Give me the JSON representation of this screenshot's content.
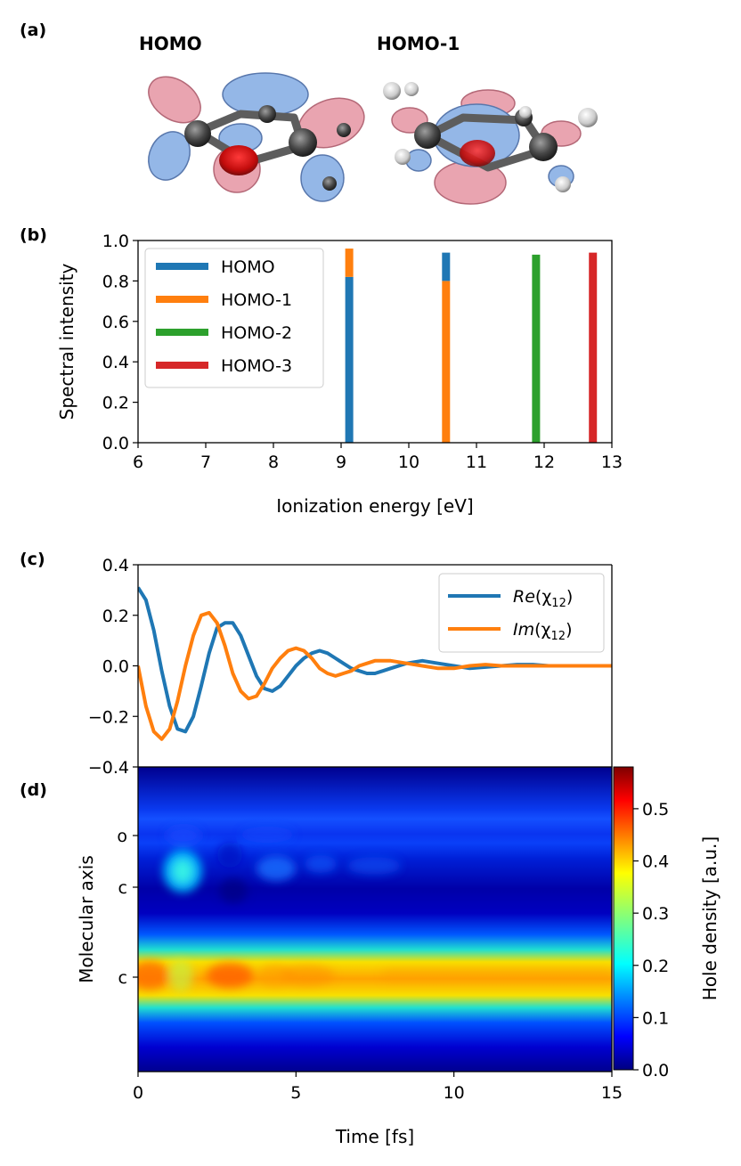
{
  "panel_labels": {
    "a": "(a)",
    "b": "(b)",
    "c": "(c)",
    "d": "(d)"
  },
  "orbitals": {
    "left_title": "HOMO",
    "right_title": "HOMO-1"
  },
  "colors": {
    "tab_blue": "#1f77b4",
    "tab_orange": "#ff7f0e",
    "tab_green": "#2ca02c",
    "tab_red": "#d62728",
    "lobe_red": "#e8a0ac",
    "lobe_blue": "#8fb4e6"
  },
  "chart_data": [
    {
      "id": "b",
      "type": "bar",
      "title": "",
      "xlabel": "Ionization energy [eV]",
      "ylabel": "Spectral intensity",
      "xlim": [
        6,
        13
      ],
      "ylim": [
        0.0,
        1.0
      ],
      "xticks": [
        "6",
        "7",
        "8",
        "9",
        "10",
        "11",
        "12",
        "13"
      ],
      "yticks": [
        "0.0",
        "0.2",
        "0.4",
        "0.6",
        "0.8",
        "1.0"
      ],
      "legend_position": "top-left",
      "legend": [
        "HOMO",
        "HOMO-1",
        "HOMO-2",
        "HOMO-3"
      ],
      "bars": [
        {
          "energy": 9.12,
          "segments": [
            {
              "series": "HOMO",
              "value": 0.82
            },
            {
              "series": "HOMO-1",
              "value": 0.14
            }
          ]
        },
        {
          "energy": 10.55,
          "segments": [
            {
              "series": "HOMO-1",
              "value": 0.8
            },
            {
              "series": "HOMO",
              "value": 0.14
            }
          ]
        },
        {
          "energy": 11.88,
          "segments": [
            {
              "series": "HOMO-2",
              "value": 0.93
            }
          ]
        },
        {
          "energy": 12.72,
          "segments": [
            {
              "series": "HOMO-3",
              "value": 0.94
            }
          ]
        }
      ]
    },
    {
      "id": "c",
      "type": "line",
      "xlim": [
        0,
        15
      ],
      "ylim": [
        -0.4,
        0.4
      ],
      "yticks": [
        "0.4",
        "0.2",
        "0.0",
        "−0.2",
        "−0.4"
      ],
      "legend_position": "top-right",
      "series": [
        {
          "name": "Re",
          "label_fn": "Re",
          "label_arg": "(χ",
          "label_sub": "12",
          "label_close": ")",
          "x": [
            0,
            0.25,
            0.5,
            0.75,
            1.0,
            1.25,
            1.5,
            1.75,
            2.0,
            2.25,
            2.5,
            2.75,
            3.0,
            3.25,
            3.5,
            3.75,
            4.0,
            4.25,
            4.5,
            4.75,
            5.0,
            5.25,
            5.5,
            5.75,
            6.0,
            6.25,
            6.5,
            6.75,
            7.0,
            7.25,
            7.5,
            7.75,
            8.0,
            8.5,
            9.0,
            9.5,
            10.0,
            10.5,
            11.0,
            11.5,
            12.0,
            12.5,
            13.0,
            13.5,
            14.0,
            14.5,
            15.0
          ],
          "y": [
            0.31,
            0.26,
            0.14,
            -0.02,
            -0.16,
            -0.25,
            -0.26,
            -0.2,
            -0.08,
            0.05,
            0.15,
            0.17,
            0.17,
            0.12,
            0.04,
            -0.04,
            -0.09,
            -0.1,
            -0.08,
            -0.04,
            0.0,
            0.03,
            0.05,
            0.06,
            0.05,
            0.03,
            0.01,
            -0.01,
            -0.02,
            -0.03,
            -0.03,
            -0.02,
            -0.01,
            0.01,
            0.02,
            0.01,
            0.0,
            -0.01,
            -0.005,
            0.0,
            0.005,
            0.005,
            0.0,
            0.0,
            0.0,
            0.0,
            0.0
          ]
        },
        {
          "name": "Im",
          "label_fn": "Im",
          "label_arg": "(χ",
          "label_sub": "12",
          "label_close": ")",
          "x": [
            0,
            0.25,
            0.5,
            0.75,
            1.0,
            1.25,
            1.5,
            1.75,
            2.0,
            2.25,
            2.5,
            2.75,
            3.0,
            3.25,
            3.5,
            3.75,
            4.0,
            4.25,
            4.5,
            4.75,
            5.0,
            5.25,
            5.5,
            5.75,
            6.0,
            6.25,
            6.5,
            6.75,
            7.0,
            7.25,
            7.5,
            7.75,
            8.0,
            8.5,
            9.0,
            9.5,
            10.0,
            10.5,
            11.0,
            11.5,
            12.0,
            12.5,
            13.0,
            13.5,
            14.0,
            14.5,
            15.0
          ],
          "y": [
            0.0,
            -0.16,
            -0.26,
            -0.29,
            -0.25,
            -0.14,
            0.0,
            0.12,
            0.2,
            0.21,
            0.17,
            0.08,
            -0.03,
            -0.1,
            -0.13,
            -0.12,
            -0.07,
            -0.01,
            0.03,
            0.06,
            0.07,
            0.06,
            0.03,
            -0.01,
            -0.03,
            -0.04,
            -0.03,
            -0.02,
            0.0,
            0.01,
            0.02,
            0.02,
            0.02,
            0.01,
            0.0,
            -0.01,
            -0.01,
            0.0,
            0.005,
            0.0,
            0.0,
            0.0,
            0.0,
            0.0,
            0.0,
            0.0,
            0.0
          ]
        }
      ]
    },
    {
      "id": "d",
      "type": "heatmap",
      "xlabel": "Time [fs]",
      "ylabel": "Molecular axis",
      "xlim": [
        0,
        15
      ],
      "xticks": [
        "0",
        "5",
        "10",
        "15"
      ],
      "atom_labels": [
        "o",
        "c",
        "c"
      ],
      "colorbar_label": "Hole density [a.u.]",
      "colorbar_range": [
        0.0,
        0.58
      ],
      "colorbar_ticks": [
        "0.0",
        "0.1",
        "0.2",
        "0.3",
        "0.4",
        "0.5"
      ],
      "colormap": "jet"
    }
  ]
}
